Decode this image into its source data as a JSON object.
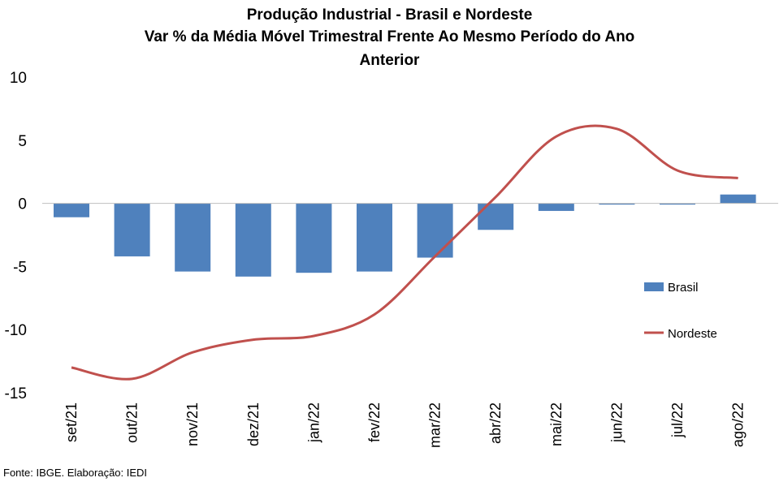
{
  "chart_data": {
    "type": "bar",
    "title_lines": [
      "Produção Industrial - Brasil e Nordeste",
      "Var % da Média Móvel Trimestral Frente Ao Mesmo Período do Ano",
      "Anterior"
    ],
    "categories": [
      "set/21",
      "out/21",
      "nov/21",
      "dez/21",
      "jan/22",
      "fev/22",
      "mar/22",
      "abr/22",
      "mai/22",
      "jun/22",
      "jul/22",
      "ago/22"
    ],
    "series": [
      {
        "name": "Brasil",
        "type": "bar",
        "color": "#4f81bd",
        "values": [
          -1.1,
          -4.2,
          -5.4,
          -5.8,
          -5.5,
          -5.4,
          -4.3,
          -2.1,
          -0.6,
          -0.1,
          -0.1,
          0.7
        ]
      },
      {
        "name": "Nordeste",
        "type": "line",
        "color": "#c0504d",
        "values": [
          -13.0,
          -13.9,
          -11.8,
          -10.8,
          -10.5,
          -8.8,
          -4.2,
          0.5,
          5.3,
          5.9,
          2.6,
          2.0
        ]
      }
    ],
    "yticks": [
      10,
      5,
      0,
      -5,
      -10,
      -15
    ],
    "ylim": [
      -15,
      10
    ],
    "grid": false,
    "legend_position": "right"
  },
  "source_note": "Fonte: IBGE. Elaboração: IEDI"
}
